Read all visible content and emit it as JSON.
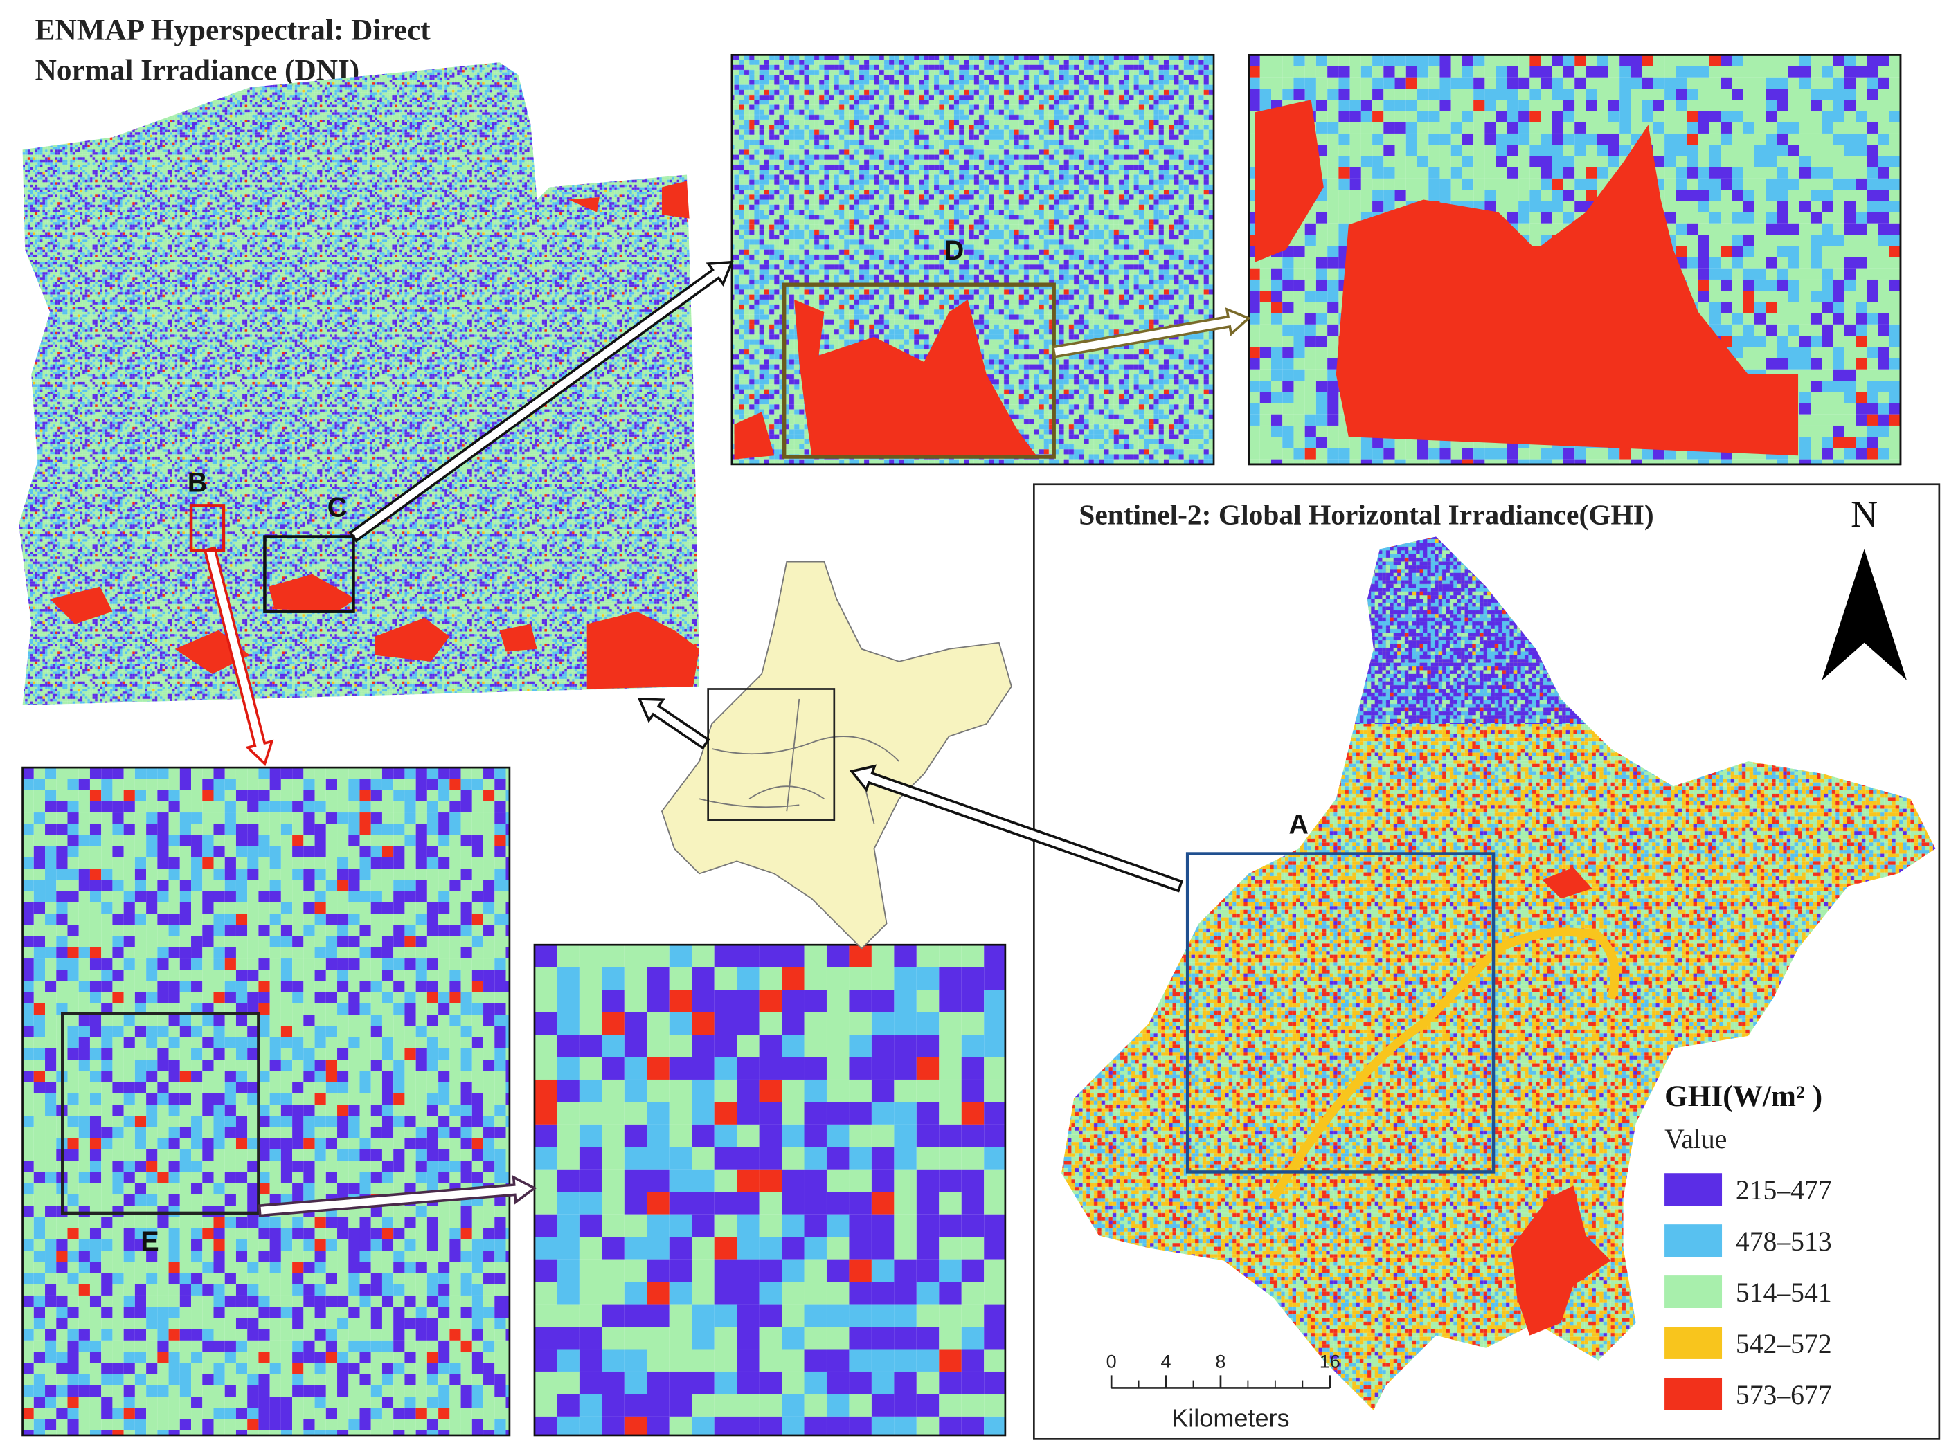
{
  "dni_panel": {
    "title_line1": "ENMAP Hyperspectral: Direct",
    "title_line2": "Normal Irradiance (DNI)"
  },
  "markers": {
    "a": "A",
    "b": "B",
    "c": "C",
    "d": "D",
    "e": "E"
  },
  "ghi_panel": {
    "title": "Sentinel-2: Global Horizontal Irradiance(GHI)",
    "north": "N"
  },
  "legend": {
    "title": "GHI(W/m² )",
    "subtitle": "Value",
    "classes": [
      {
        "label": "215–477",
        "color": "#5b2de6"
      },
      {
        "label": "478–513",
        "color": "#58c1f0"
      },
      {
        "label": "514–541",
        "color": "#a8efac"
      },
      {
        "label": "542–572",
        "color": "#f8c51d"
      },
      {
        "label": "573–677",
        "color": "#f2311b"
      }
    ]
  },
  "scale_bar": {
    "ticks": [
      0,
      4,
      8,
      16
    ],
    "unit": "Kilometers"
  }
}
